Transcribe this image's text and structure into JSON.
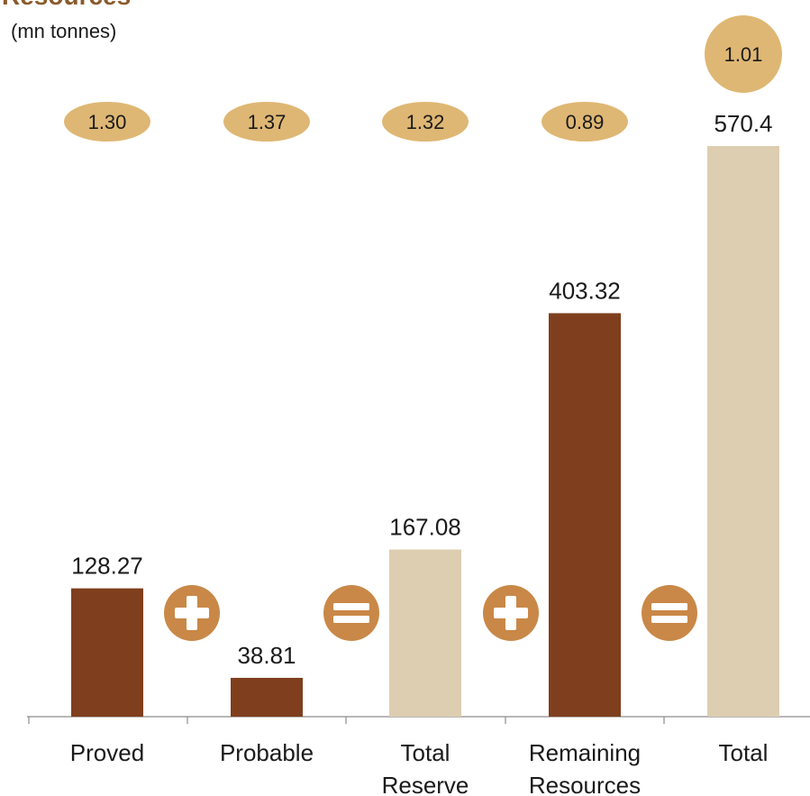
{
  "chart_data": {
    "type": "bar",
    "title": "Resources",
    "subtitle": "(mn tonnes)",
    "categories": [
      [
        "Proved"
      ],
      [
        "Probable"
      ],
      [
        "Total",
        "Reserve"
      ],
      [
        "Remaining",
        "Resources"
      ],
      [
        "Total"
      ]
    ],
    "values": [
      128.27,
      38.81,
      167.08,
      403.32,
      570.4
    ],
    "value_labels": [
      "128.27",
      "38.81",
      "167.08",
      "403.32",
      "570.4"
    ],
    "bubble_labels": [
      "1.30",
      "1.37",
      "1.32",
      "0.89",
      "1.01"
    ],
    "operators": [
      {
        "symbol": "plus",
        "between": [
          0,
          1
        ]
      },
      {
        "symbol": "equals",
        "between": [
          1,
          2
        ]
      },
      {
        "symbol": "plus",
        "between": [
          2,
          3
        ]
      },
      {
        "symbol": "equals",
        "between": [
          3,
          4
        ]
      }
    ],
    "bar_kinds": [
      "dark",
      "dark",
      "light",
      "dark",
      "light"
    ],
    "colors": {
      "dark": "#7f3f1e",
      "light": "#ddceb1",
      "bubble": "#dfb774",
      "operator": "#c98847",
      "axis": "#8c8c8c",
      "text": "#1a1a1a",
      "title": "#8a5a2b"
    },
    "ylim": [
      0,
      570.4
    ],
    "grid": false,
    "legend": "none"
  }
}
